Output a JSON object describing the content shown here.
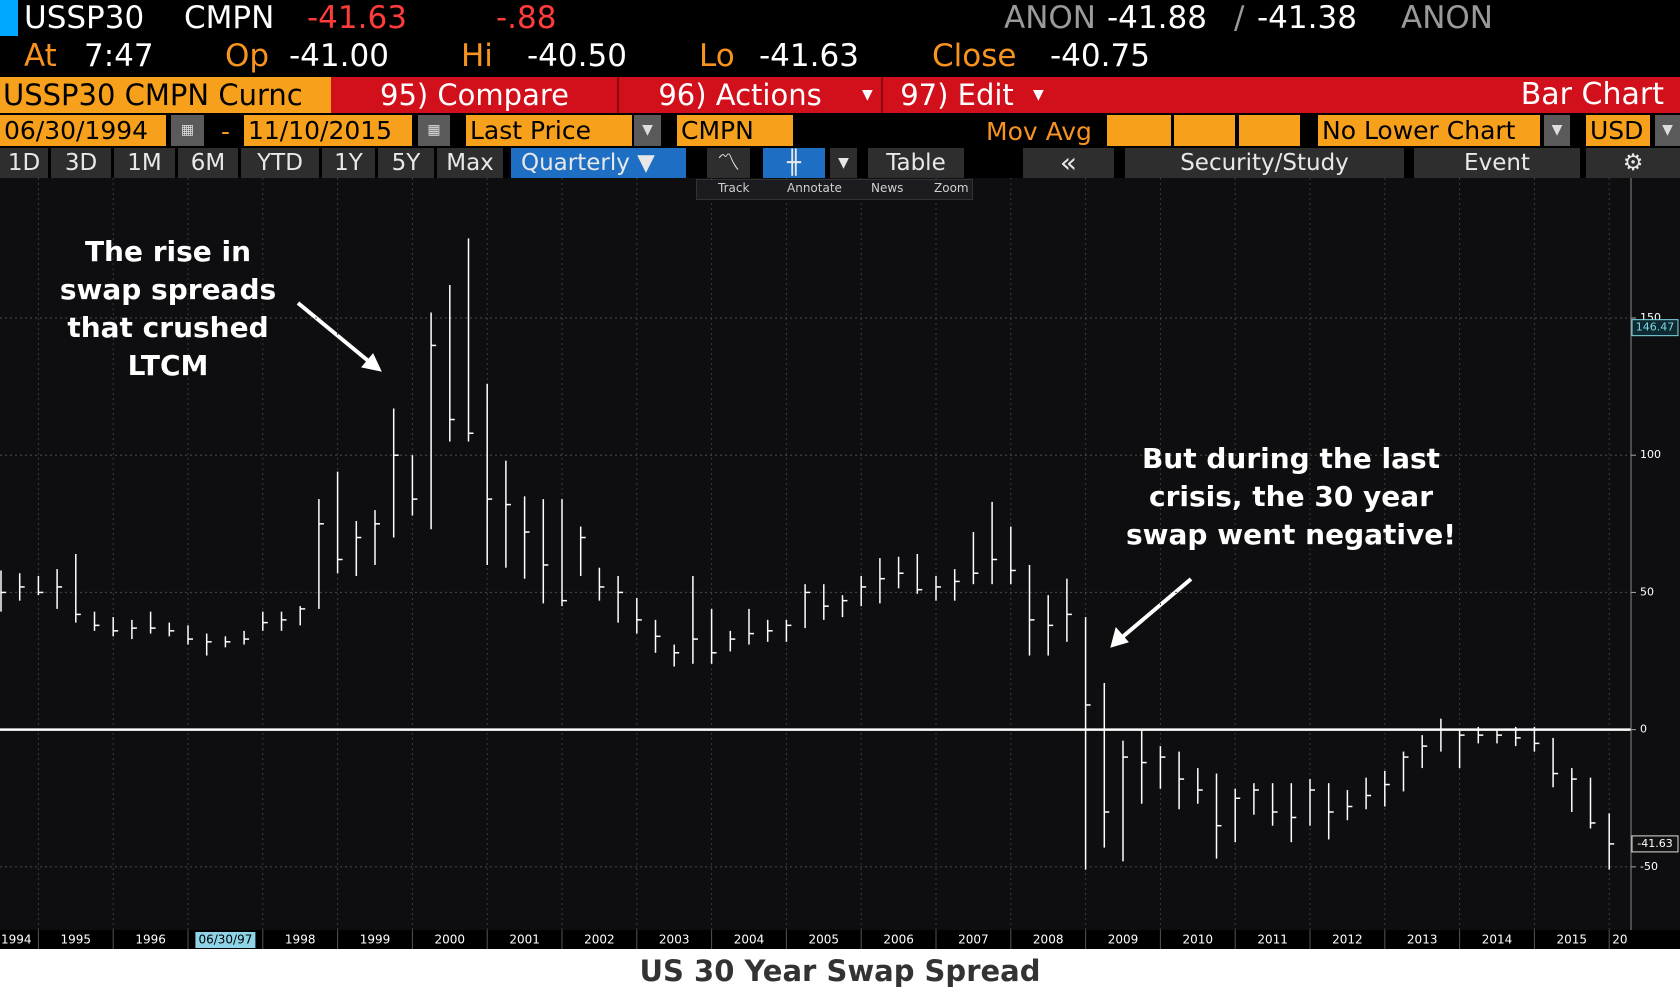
{
  "header": {
    "ticker": "USSP30",
    "source": "CMPN",
    "last": "-41.63",
    "change": "-.88",
    "bid_source": "ANON",
    "bid": "-41.88",
    "separator": "/",
    "ask": "-41.38",
    "ask_source": "ANON"
  },
  "quote": {
    "time_label": "At",
    "time": "7:47",
    "open_label": "Op",
    "open": "-41.00",
    "high_label": "Hi",
    "high": "-40.50",
    "low_label": "Lo",
    "low": "-41.63",
    "close_label": "Close",
    "close": "-40.75"
  },
  "menu": {
    "security": "USSP30 CMPN Curnc",
    "compare": "95) Compare",
    "actions": "96) Actions",
    "edit": "97) Edit",
    "view": "Bar Chart"
  },
  "settings": {
    "start_date": "06/30/1994",
    "date_separator": "-",
    "end_date": "11/10/2015",
    "field": "Last Price",
    "source": "CMPN",
    "study": "Mov Avg",
    "lower_chart": "No Lower Chart",
    "currency": "USD"
  },
  "toolbar": {
    "ranges": [
      "1D",
      "3D",
      "1M",
      "6M",
      "YTD",
      "1Y",
      "5Y",
      "Max"
    ],
    "period": "Quarterly",
    "table": "Table",
    "collapse": "«",
    "study": "Security/Study",
    "event": "Event"
  },
  "chart_tools": [
    "Track",
    "Annotate",
    "News",
    "Zoom"
  ],
  "chart_data": {
    "type": "ohlc",
    "title": "US 30 Year Swap Spread",
    "color": "#ffffff",
    "grid": true,
    "annotations": [
      [
        "The rise in",
        "swap spreads",
        "that crushed",
        "LTCM"
      ],
      [
        "But during the last",
        "crisis, the 30 year",
        "swap went negative!"
      ]
    ],
    "categories": [
      null,
      null,
      null,
      null,
      null,
      null,
      null,
      null,
      null,
      null,
      null,
      null,
      null,
      null,
      null,
      null,
      null,
      null,
      null,
      null,
      null,
      null,
      null,
      null,
      null,
      null,
      null,
      null,
      null,
      null,
      null,
      null,
      null,
      null,
      null,
      null,
      null,
      null,
      null,
      null,
      null,
      null,
      null,
      null,
      null,
      null,
      null,
      null,
      null,
      null,
      null,
      null,
      null,
      null,
      null,
      null,
      null,
      null,
      null,
      null,
      null,
      null,
      null,
      null,
      null,
      null,
      null,
      null,
      null,
      null,
      null,
      null,
      null,
      null,
      null,
      null,
      null,
      null,
      null,
      null,
      null,
      null,
      null,
      null,
      null,
      null,
      null
    ],
    "high": [
      58,
      57,
      56,
      58.5,
      64,
      43,
      41,
      40,
      43,
      39,
      38,
      35,
      34,
      36,
      43,
      43,
      45,
      84,
      94,
      76,
      80,
      117,
      100,
      152,
      162,
      179,
      126,
      98,
      85,
      84,
      84,
      74,
      59,
      56,
      48,
      40,
      31,
      56,
      44,
      36,
      44,
      40,
      40,
      53,
      53,
      49,
      56,
      62.5,
      63,
      64,
      56,
      58.5,
      72,
      83,
      74,
      60,
      49,
      55,
      41,
      17,
      -4,
      0,
      -6,
      -8,
      -14,
      -16,
      -21.5,
      -19.5,
      -19.5,
      -19.5,
      -18,
      -19.5,
      -22,
      -17.5,
      -15,
      -8,
      -2,
      4,
      0,
      1,
      0,
      1,
      1,
      -3,
      -14,
      -17.5,
      -30.5
    ],
    "low": [
      43,
      47,
      49,
      44,
      39,
      36,
      34,
      33,
      35,
      34,
      31,
      27,
      30,
      31,
      36,
      36,
      38,
      44,
      57,
      56,
      60,
      70,
      78,
      73,
      105,
      105,
      60,
      59,
      55,
      46,
      45,
      56,
      47,
      39,
      35,
      28,
      23,
      24,
      24,
      28.5,
      31,
      32,
      32,
      37,
      40,
      41,
      45,
      46,
      51.5,
      49.5,
      47,
      47,
      53,
      53,
      53,
      27,
      27,
      32,
      -51,
      -43,
      -48,
      -27,
      -21.5,
      -29,
      -27,
      -47,
      -41,
      -31,
      -35,
      -41,
      -35,
      -40,
      -33,
      -29,
      -28,
      -22.5,
      -14,
      -8,
      -14,
      -5,
      -5,
      -6,
      -8,
      -21,
      -30,
      -36,
      -51
    ],
    "close": [
      50,
      52,
      50,
      52,
      42,
      38,
      36,
      37,
      37,
      36,
      33,
      32,
      32,
      33,
      39,
      40,
      44,
      75,
      62,
      70,
      75,
      100,
      84,
      140,
      113,
      108,
      84,
      82,
      72,
      60,
      47,
      70,
      52,
      50,
      40,
      34,
      28,
      33,
      28,
      33,
      35,
      36,
      38,
      50,
      45,
      47,
      52,
      55,
      57,
      51,
      52,
      54,
      57,
      62,
      58,
      40,
      38,
      42,
      9,
      -30,
      -10,
      -12,
      -10,
      -18,
      -22,
      -35,
      -25,
      -22,
      -30,
      -32,
      -22,
      -30,
      -28,
      -24,
      -20,
      -10,
      -6,
      0,
      -2,
      -2,
      -2,
      -3,
      -5,
      -16,
      -18,
      -34,
      -41.63
    ],
    "ylim": [
      -73,
      201
    ],
    "yticks": [
      -50,
      0,
      50,
      100,
      150
    ],
    "price_labels": [
      146.47,
      -41.63
    ],
    "x_labels": [
      "1994",
      "1995",
      "1996",
      "06/30/97",
      "1998",
      "1999",
      "2000",
      "2001",
      "2002",
      "2003",
      "2004",
      "2005",
      "2006",
      "2007",
      "2008",
      "2009",
      "2010",
      "2011",
      "2012",
      "2013",
      "2014",
      "2015",
      "20"
    ]
  }
}
